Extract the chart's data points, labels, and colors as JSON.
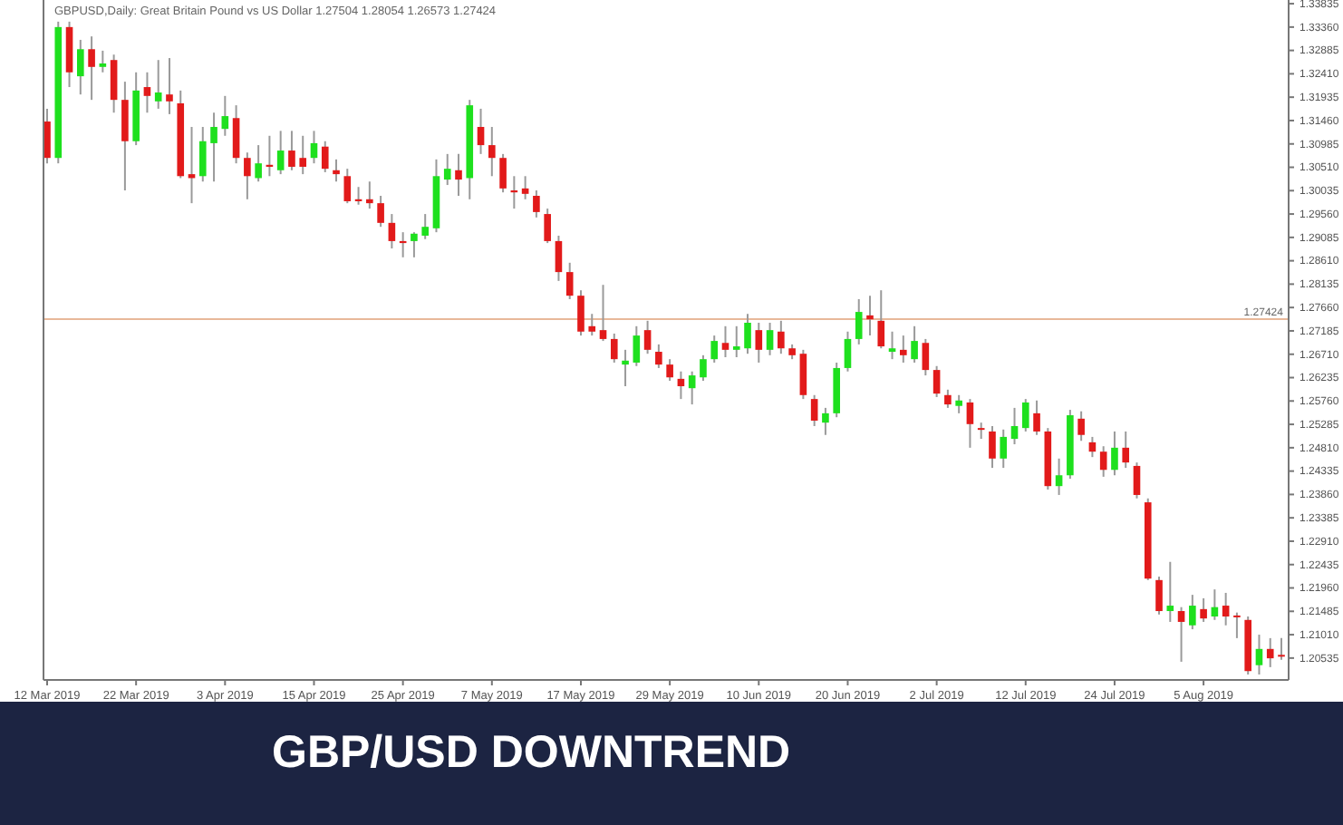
{
  "chart_data": {
    "type": "candlestick",
    "title": "GBP/USD DOWNTREND",
    "subtitle": "GBPUSD,Daily:  Great Britain Pound vs US Dollar  1.27504 1.28054 1.26573 1.27424",
    "categories": [
      "12 Mar 2019",
      null,
      null,
      null,
      null,
      null,
      null,
      null,
      "22 Mar 2019",
      null,
      null,
      null,
      null,
      null,
      null,
      null,
      "3 Apr 2019",
      null,
      null,
      null,
      null,
      null,
      null,
      null,
      "15 Apr 2019",
      null,
      null,
      null,
      null,
      null,
      null,
      null,
      "25 Apr 2019",
      null,
      null,
      null,
      null,
      null,
      null,
      null,
      "7 May 2019",
      null,
      null,
      null,
      null,
      null,
      null,
      null,
      "17 May 2019",
      null,
      null,
      null,
      null,
      null,
      null,
      null,
      "29 May 2019",
      null,
      null,
      null,
      null,
      null,
      null,
      null,
      "10 Jun 2019",
      null,
      null,
      null,
      null,
      null,
      null,
      null,
      "20 Jun 2019",
      null,
      null,
      null,
      null,
      null,
      null,
      null,
      "2 Jul 2019",
      null,
      null,
      null,
      null,
      null,
      null,
      null,
      "12 Jul 2019",
      null,
      null,
      null,
      null,
      null,
      null,
      null,
      "24 Jul 2019",
      null,
      null,
      null,
      null,
      null,
      null,
      null,
      "5 Aug 2019",
      null,
      null,
      null,
      null,
      null,
      null,
      null
    ],
    "ohlc": [
      [
        1.3144,
        1.317,
        1.3059,
        1.307
      ],
      [
        1.307,
        1.3347,
        1.3059,
        1.3336
      ],
      [
        1.3336,
        1.3347,
        1.3214,
        1.3244
      ],
      [
        1.3236,
        1.331,
        1.3199,
        1.3291
      ],
      [
        1.3291,
        1.3317,
        1.3188,
        1.3255
      ],
      [
        1.3255,
        1.3288,
        1.3244,
        1.3262
      ],
      [
        1.3269,
        1.328,
        1.3162,
        1.3188
      ],
      [
        1.3188,
        1.3225,
        1.3004,
        1.3104
      ],
      [
        1.3104,
        1.3244,
        1.3096,
        1.3207
      ],
      [
        1.3214,
        1.3244,
        1.3162,
        1.3196
      ],
      [
        1.3185,
        1.3269,
        1.317,
        1.3203
      ],
      [
        1.3199,
        1.3273,
        1.3159,
        1.3185
      ],
      [
        1.3181,
        1.3207,
        1.3029,
        1.3033
      ],
      [
        1.3037,
        1.3133,
        1.2978,
        1.3029
      ],
      [
        1.3033,
        1.3133,
        1.3022,
        1.3104
      ],
      [
        1.31,
        1.3162,
        1.3022,
        1.3133
      ],
      [
        1.3129,
        1.3196,
        1.3115,
        1.3155
      ],
      [
        1.3151,
        1.3177,
        1.3059,
        1.307
      ],
      [
        1.307,
        1.3081,
        1.2986,
        1.3033
      ],
      [
        1.3029,
        1.3096,
        1.3022,
        1.3059
      ],
      [
        1.3056,
        1.3115,
        1.3033,
        1.3052
      ],
      [
        1.3045,
        1.3125,
        1.3037,
        1.3085
      ],
      [
        1.3085,
        1.3125,
        1.3045,
        1.3052
      ],
      [
        1.307,
        1.3115,
        1.3037,
        1.3052
      ],
      [
        1.307,
        1.3125,
        1.3059,
        1.31
      ],
      [
        1.3093,
        1.3104,
        1.3041,
        1.3048
      ],
      [
        1.3045,
        1.3067,
        1.3022,
        1.3037
      ],
      [
        1.3033,
        1.3048,
        1.2978,
        1.2982
      ],
      [
        1.2986,
        1.3011,
        1.2975,
        1.2982
      ],
      [
        1.2986,
        1.3022,
        1.2967,
        1.2978
      ],
      [
        1.2978,
        1.2993,
        1.293,
        1.2938
      ],
      [
        1.2938,
        1.2956,
        1.2886,
        1.2901
      ],
      [
        1.2901,
        1.2919,
        1.2868,
        1.2897
      ],
      [
        1.2901,
        1.2919,
        1.2868,
        1.2916
      ],
      [
        1.2912,
        1.2956,
        1.2905,
        1.293
      ],
      [
        1.2927,
        1.3067,
        1.2919,
        1.3033
      ],
      [
        1.3026,
        1.3078,
        1.3015,
        1.3048
      ],
      [
        1.3045,
        1.3078,
        1.2993,
        1.3026
      ],
      [
        1.3029,
        1.3188,
        1.2986,
        1.3177
      ],
      [
        1.3133,
        1.317,
        1.3078,
        1.3096
      ],
      [
        1.3096,
        1.3133,
        1.3033,
        1.307
      ],
      [
        1.307,
        1.3078,
        1.3,
        1.3008
      ],
      [
        1.3004,
        1.3033,
        1.2967,
        1.3
      ],
      [
        1.3008,
        1.3033,
        1.2986,
        1.2997
      ],
      [
        1.2993,
        1.3004,
        1.2949,
        1.296
      ],
      [
        1.2956,
        1.2967,
        1.2897,
        1.2901
      ],
      [
        1.2901,
        1.2912,
        1.282,
        1.2838
      ],
      [
        1.2838,
        1.2857,
        1.2783,
        1.279
      ],
      [
        1.279,
        1.2801,
        1.2709,
        1.2717
      ],
      [
        1.2728,
        1.2753,
        1.2709,
        1.2717
      ],
      [
        1.272,
        1.2812,
        1.2698,
        1.2702
      ],
      [
        1.2702,
        1.2713,
        1.2654,
        1.2661
      ],
      [
        1.265,
        1.268,
        1.2606,
        1.2658
      ],
      [
        1.2654,
        1.2728,
        1.2647,
        1.2709
      ],
      [
        1.272,
        1.2739,
        1.2672,
        1.268
      ],
      [
        1.2676,
        1.2691,
        1.2643,
        1.265
      ],
      [
        1.265,
        1.2661,
        1.2617,
        1.2624
      ],
      [
        1.2621,
        1.2636,
        1.258,
        1.2606
      ],
      [
        1.2602,
        1.2636,
        1.2569,
        1.2628
      ],
      [
        1.2624,
        1.2669,
        1.2617,
        1.2661
      ],
      [
        1.2661,
        1.2709,
        1.2654,
        1.2698
      ],
      [
        1.2694,
        1.2728,
        1.2665,
        1.268
      ],
      [
        1.268,
        1.2728,
        1.2665,
        1.2687
      ],
      [
        1.2683,
        1.2753,
        1.2672,
        1.2735
      ],
      [
        1.272,
        1.2735,
        1.2654,
        1.268
      ],
      [
        1.268,
        1.2735,
        1.2669,
        1.272
      ],
      [
        1.2717,
        1.2739,
        1.2672,
        1.2683
      ],
      [
        1.2683,
        1.2691,
        1.2661,
        1.2669
      ],
      [
        1.2672,
        1.268,
        1.258,
        1.2588
      ],
      [
        1.258,
        1.2588,
        1.2525,
        1.2536
      ],
      [
        1.2532,
        1.2562,
        1.2507,
        1.2551
      ],
      [
        1.2551,
        1.2654,
        1.2543,
        1.2643
      ],
      [
        1.2643,
        1.2717,
        1.2636,
        1.2702
      ],
      [
        1.2702,
        1.2783,
        1.2691,
        1.2757
      ],
      [
        1.275,
        1.279,
        1.2709,
        1.2742
      ],
      [
        1.2739,
        1.2801,
        1.2683,
        1.2687
      ],
      [
        1.2676,
        1.2717,
        1.2661,
        1.2683
      ],
      [
        1.268,
        1.2709,
        1.2654,
        1.2669
      ],
      [
        1.2661,
        1.2728,
        1.2654,
        1.2698
      ],
      [
        1.2694,
        1.2702,
        1.2628,
        1.2639
      ],
      [
        1.2639,
        1.2647,
        1.2584,
        1.2591
      ],
      [
        1.2588,
        1.2599,
        1.2562,
        1.2569
      ],
      [
        1.2566,
        1.2588,
        1.2551,
        1.2577
      ],
      [
        1.2573,
        1.258,
        1.2481,
        1.2529
      ],
      [
        1.2521,
        1.2532,
        1.2499,
        1.2518
      ],
      [
        1.2514,
        1.2525,
        1.244,
        1.2459
      ],
      [
        1.2459,
        1.2518,
        1.244,
        1.2503
      ],
      [
        1.2499,
        1.2562,
        1.2488,
        1.2525
      ],
      [
        1.2521,
        1.258,
        1.2514,
        1.2573
      ],
      [
        1.2551,
        1.2577,
        1.2507,
        1.2514
      ],
      [
        1.2514,
        1.2521,
        1.2396,
        1.2403
      ],
      [
        1.2403,
        1.2459,
        1.2385,
        1.2425
      ],
      [
        1.2425,
        1.2558,
        1.2418,
        1.2547
      ],
      [
        1.254,
        1.2555,
        1.2495,
        1.2507
      ],
      [
        1.2492,
        1.2503,
        1.2462,
        1.2473
      ],
      [
        1.2473,
        1.2484,
        1.2422,
        1.2436
      ],
      [
        1.2436,
        1.2514,
        1.2425,
        1.2481
      ],
      [
        1.2481,
        1.2514,
        1.244,
        1.2451
      ],
      [
        1.2444,
        1.2451,
        1.2378,
        1.2385
      ],
      [
        1.237,
        1.2378,
        1.2212,
        1.2215
      ],
      [
        1.2212,
        1.2219,
        1.2142,
        1.2149
      ],
      [
        1.2149,
        1.2249,
        1.2127,
        1.216
      ],
      [
        1.2149,
        1.2157,
        1.2046,
        1.2127
      ],
      [
        1.212,
        1.2182,
        1.2112,
        1.216
      ],
      [
        1.2153,
        1.2175,
        1.2127,
        1.2134
      ],
      [
        1.2138,
        1.2193,
        1.2131,
        1.2157
      ],
      [
        1.216,
        1.2186,
        1.212,
        1.2138
      ],
      [
        1.214,
        1.2146,
        1.2094,
        1.2138
      ],
      [
        1.2131,
        1.2138,
        1.202,
        1.2027
      ],
      [
        1.2039,
        1.2101,
        1.202,
        1.2072
      ],
      [
        1.2072,
        1.2094,
        1.2035,
        1.2053
      ],
      [
        1.206,
        1.2094,
        1.205,
        1.2057
      ]
    ],
    "ylim": [
      1.2009,
      1.3391
    ],
    "yticks": [
      1.33835,
      {
        "value": 1.3336,
        "label": "1.33360"
      },
      1.32885,
      {
        "value": 1.3241,
        "label": "1.32410"
      },
      1.31935,
      {
        "value": 1.3146,
        "label": "1.31460"
      },
      1.30985,
      {
        "value": 1.3051,
        "label": "1.30510"
      },
      1.30035,
      {
        "value": 1.2956,
        "label": "1.29560"
      },
      1.29085,
      {
        "value": 1.2861,
        "label": "1.28610"
      },
      1.28135,
      {
        "value": 1.2766,
        "label": "1.27660"
      },
      1.27185,
      {
        "value": 1.2671,
        "label": "1.26710"
      },
      1.26235,
      {
        "value": 1.2576,
        "label": "1.25760"
      },
      1.25285,
      {
        "value": 1.2481,
        "label": "1.24810"
      },
      1.24335,
      {
        "value": 1.2386,
        "label": "1.23860"
      },
      1.23385,
      {
        "value": 1.2291,
        "label": "1.22910"
      },
      1.22435,
      {
        "value": 1.2196,
        "label": "1.21960"
      },
      1.21485,
      {
        "value": 1.2101,
        "label": "1.21010"
      },
      1.20535
    ],
    "ref_lines": [
      {
        "axis": "y",
        "value": 1.27424,
        "label": "1.27424",
        "color": "#e8b89a"
      }
    ],
    "grid": false
  }
}
